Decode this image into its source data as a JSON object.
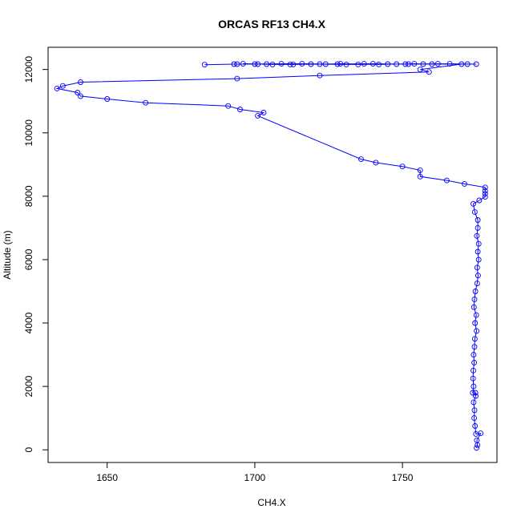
{
  "chart_data": {
    "type": "line",
    "title": "ORCAS RF13 CH4.X",
    "xlabel": "CH4.X",
    "ylabel": "Altitude (m)",
    "xlim": [
      1630,
      1782
    ],
    "ylim": [
      -400,
      12700
    ],
    "x_ticks": [
      1650,
      1700,
      1750
    ],
    "y_ticks": [
      0,
      2000,
      4000,
      6000,
      8000,
      10000,
      12000
    ],
    "line_color": "#0000ff",
    "marker": "open-circle",
    "grid": false,
    "legend": "none",
    "series": [
      {
        "points": [
          [
            1683,
            12150
          ],
          [
            1693,
            12170
          ],
          [
            1701,
            12170
          ],
          [
            1712,
            12160
          ],
          [
            1724,
            12170
          ],
          [
            1735,
            12160
          ],
          [
            1748,
            12170
          ],
          [
            1760,
            12170
          ],
          [
            1772,
            12170
          ],
          [
            1775,
            12170
          ],
          [
            1766,
            12180
          ],
          [
            1752,
            12170
          ],
          [
            1740,
            12180
          ],
          [
            1728,
            12170
          ],
          [
            1716,
            12180
          ],
          [
            1704,
            12170
          ],
          [
            1696,
            12180
          ],
          [
            1706,
            12160
          ],
          [
            1719,
            12170
          ],
          [
            1731,
            12160
          ],
          [
            1745,
            12170
          ],
          [
            1757,
            12170
          ],
          [
            1754,
            12180
          ],
          [
            1742,
            12160
          ],
          [
            1729,
            12180
          ],
          [
            1713,
            12160
          ],
          [
            1700,
            12170
          ],
          [
            1694,
            12170
          ],
          [
            1709,
            12180
          ],
          [
            1722,
            12170
          ],
          [
            1737,
            12180
          ],
          [
            1751,
            12170
          ],
          [
            1762,
            12180
          ],
          [
            1770,
            12170
          ],
          [
            1756,
            12000
          ],
          [
            1759,
            11920
          ],
          [
            1722,
            11810
          ],
          [
            1694,
            11710
          ],
          [
            1641,
            11600
          ],
          [
            1635,
            11480
          ],
          [
            1633,
            11400
          ],
          [
            1640,
            11270
          ],
          [
            1641,
            11160
          ],
          [
            1650,
            11070
          ],
          [
            1663,
            10950
          ],
          [
            1691,
            10850
          ],
          [
            1695,
            10740
          ],
          [
            1703,
            10640
          ],
          [
            1701,
            10540
          ],
          [
            1736,
            9170
          ],
          [
            1741,
            9060
          ],
          [
            1750,
            8940
          ],
          [
            1756,
            8820
          ],
          [
            1756,
            8620
          ],
          [
            1765,
            8500
          ],
          [
            1771,
            8390
          ],
          [
            1778,
            8280
          ],
          [
            1778,
            8170
          ],
          [
            1778,
            8080
          ],
          [
            1778,
            7980
          ],
          [
            1776,
            7870
          ],
          [
            1774,
            7760
          ],
          [
            1774.5,
            7500
          ],
          [
            1775.5,
            7250
          ],
          [
            1775.5,
            7000
          ],
          [
            1775.2,
            6750
          ],
          [
            1775.8,
            6500
          ],
          [
            1775.5,
            6250
          ],
          [
            1775.8,
            6000
          ],
          [
            1775.3,
            5750
          ],
          [
            1775.6,
            5500
          ],
          [
            1775.3,
            5250
          ],
          [
            1774.7,
            5000
          ],
          [
            1774.4,
            4750
          ],
          [
            1774.2,
            4500
          ],
          [
            1775,
            4250
          ],
          [
            1774.6,
            4000
          ],
          [
            1775.1,
            3750
          ],
          [
            1774.5,
            3500
          ],
          [
            1774.4,
            3250
          ],
          [
            1774.1,
            3000
          ],
          [
            1774.3,
            2750
          ],
          [
            1774,
            2500
          ],
          [
            1773.9,
            2250
          ],
          [
            1774.1,
            2000
          ],
          [
            1773.8,
            1800
          ],
          [
            1774.7,
            1800
          ],
          [
            1774.8,
            1700
          ],
          [
            1774.1,
            1500
          ],
          [
            1774.4,
            1250
          ],
          [
            1774.3,
            1000
          ],
          [
            1774.6,
            750
          ],
          [
            1774.9,
            500
          ],
          [
            1776.5,
            520
          ],
          [
            1775.2,
            300
          ],
          [
            1775.4,
            150
          ],
          [
            1775.1,
            60
          ]
        ]
      }
    ]
  }
}
